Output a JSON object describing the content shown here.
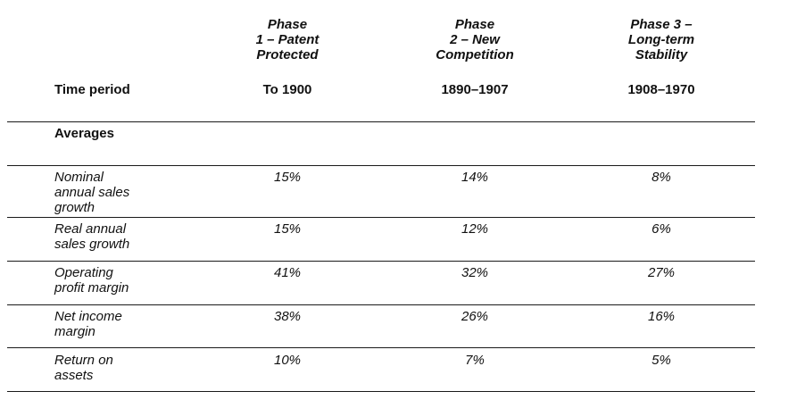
{
  "header": {
    "phases": [
      {
        "lines": [
          "Phase",
          "1 – Patent",
          "Protected"
        ],
        "period": "To 1900"
      },
      {
        "lines": [
          "Phase",
          "2 – New",
          "Competition"
        ],
        "period": "1890–1907"
      },
      {
        "lines": [
          "Phase 3 –",
          "Long-term",
          "Stability"
        ],
        "period": "1908–1970"
      }
    ],
    "period_label": "Time period"
  },
  "section_label": "Averages",
  "rows": [
    {
      "label_lines": [
        "Nominal",
        "annual sales",
        "growth"
      ],
      "values": [
        "15%",
        "14%",
        "8%"
      ]
    },
    {
      "label_lines": [
        "Real annual",
        "sales growth"
      ],
      "values": [
        "15%",
        "12%",
        "6%"
      ]
    },
    {
      "label_lines": [
        "Operating",
        "profit margin"
      ],
      "values": [
        "41%",
        "32%",
        "27%"
      ]
    },
    {
      "label_lines": [
        "Net income",
        "margin"
      ],
      "values": [
        "38%",
        "26%",
        "16%"
      ]
    },
    {
      "label_lines": [
        "Return on",
        "assets"
      ],
      "values": [
        "10%",
        "7%",
        "5%"
      ]
    }
  ]
}
